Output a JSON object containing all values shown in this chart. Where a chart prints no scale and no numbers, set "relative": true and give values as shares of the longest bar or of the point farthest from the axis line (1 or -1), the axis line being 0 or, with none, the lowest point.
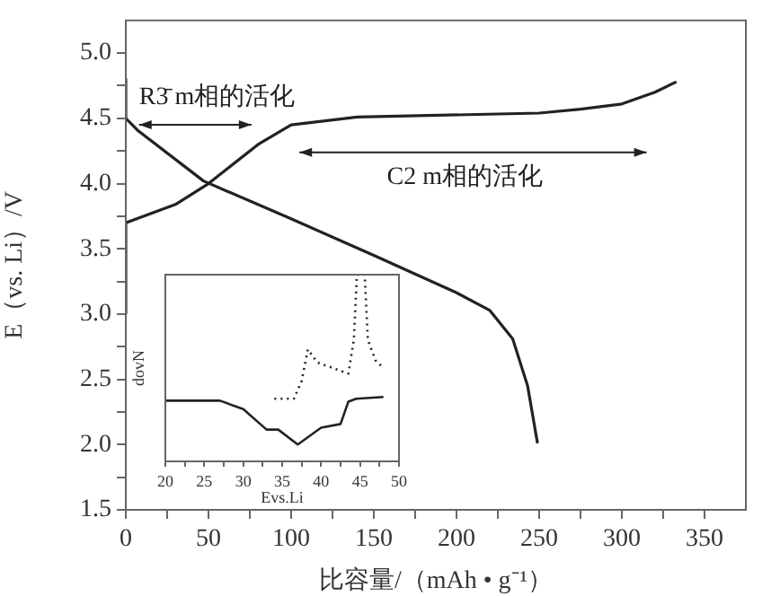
{
  "chart_data": [
    {
      "type": "line",
      "xlabel": "比容量/（mAh • g⁻¹）",
      "ylabel": "E（vs. Li）/V",
      "xlim": [
        0,
        375
      ],
      "ylim": [
        1.5,
        5.25
      ],
      "xticks": [
        0,
        {
          "value": 25,
          "label": null
        },
        50,
        {
          "value": 75,
          "label": null
        },
        100,
        {
          "value": 125,
          "label": null
        },
        150,
        {
          "value": 175,
          "label": null
        },
        200,
        {
          "value": 225,
          "label": null
        },
        250,
        {
          "value": 275,
          "label": null
        },
        300,
        {
          "value": 325,
          "label": null
        },
        350
      ],
      "yticks": [
        {
          "value": 1.5,
          "label": "1.5"
        },
        {
          "value": 1.75,
          "label": null
        },
        {
          "value": 2,
          "label": "2.0"
        },
        {
          "value": 2.25,
          "label": null
        },
        {
          "value": 2.5,
          "label": "2.5"
        },
        {
          "value": 2.75,
          "label": null
        },
        {
          "value": 3,
          "label": "3.0"
        },
        {
          "value": 3.25,
          "label": null
        },
        {
          "value": 3.5,
          "label": "3.5"
        },
        {
          "value": 3.75,
          "label": null
        },
        {
          "value": 4,
          "label": "4.0"
        },
        {
          "value": 4.25,
          "label": null
        },
        {
          "value": 4.5,
          "label": "4.5"
        },
        {
          "value": 4.75,
          "label": null
        },
        {
          "value": 5,
          "label": "5.0"
        }
      ],
      "grid": false,
      "marker": "none",
      "line_style": "solid",
      "annotations": [
        "R3̄ m相的活化",
        "C2 m相的活化"
      ],
      "series": [
        {
          "color": "#222222",
          "x": [
            0,
            0,
            30,
            50,
            80,
            100,
            140,
            250,
            275,
            300,
            320,
            333
          ],
          "values": [
            3.0,
            3.7,
            3.84,
            4.0,
            4.3,
            4.45,
            4.51,
            4.54,
            4.57,
            4.61,
            4.7,
            4.78
          ]
        },
        {
          "color": "#222222",
          "x": [
            0,
            0,
            7,
            47,
            100,
            150,
            199,
            220,
            234,
            243,
            249
          ],
          "values": [
            4.8,
            4.5,
            4.41,
            4.02,
            3.73,
            3.45,
            3.17,
            3.03,
            2.81,
            2.45,
            2.01
          ]
        }
      ]
    },
    {
      "type": "line",
      "xlabel": "Evs.Li",
      "ylabel": "dovN",
      "relative": true,
      "xlim": [
        20,
        50
      ],
      "xticks": [
        20,
        {
          "value": 22.5,
          "label": null
        },
        25,
        {
          "value": 27.5,
          "label": null
        },
        30,
        {
          "value": 32.5,
          "label": null
        },
        35,
        {
          "value": 37.5,
          "label": null
        },
        40,
        {
          "value": 42.5,
          "label": null
        },
        45,
        {
          "value": 47.5,
          "label": null
        },
        50
      ],
      "grid": false,
      "marker": "none",
      "series": [
        {
          "color": "#222222",
          "line_style": "solid",
          "x": [
            20,
            27,
            30,
            33,
            34.5,
            37,
            40,
            42.5,
            43.5,
            44.5,
            48
          ],
          "values": [
            0.325,
            0.325,
            0.28,
            0.17,
            0.17,
            0.09,
            0.18,
            0.2,
            0.32,
            0.335,
            0.345
          ]
        },
        {
          "color": "#222222",
          "line_style": "dotted",
          "x": [
            34,
            36.5,
            37.5,
            38.3,
            39.5,
            43.5,
            44.2,
            44.6,
            45.6,
            46,
            47,
            48
          ],
          "values": [
            0.335,
            0.335,
            0.43,
            0.6,
            0.53,
            0.47,
            0.65,
            1,
            1,
            0.65,
            0.54,
            0.5
          ]
        }
      ]
    }
  ]
}
